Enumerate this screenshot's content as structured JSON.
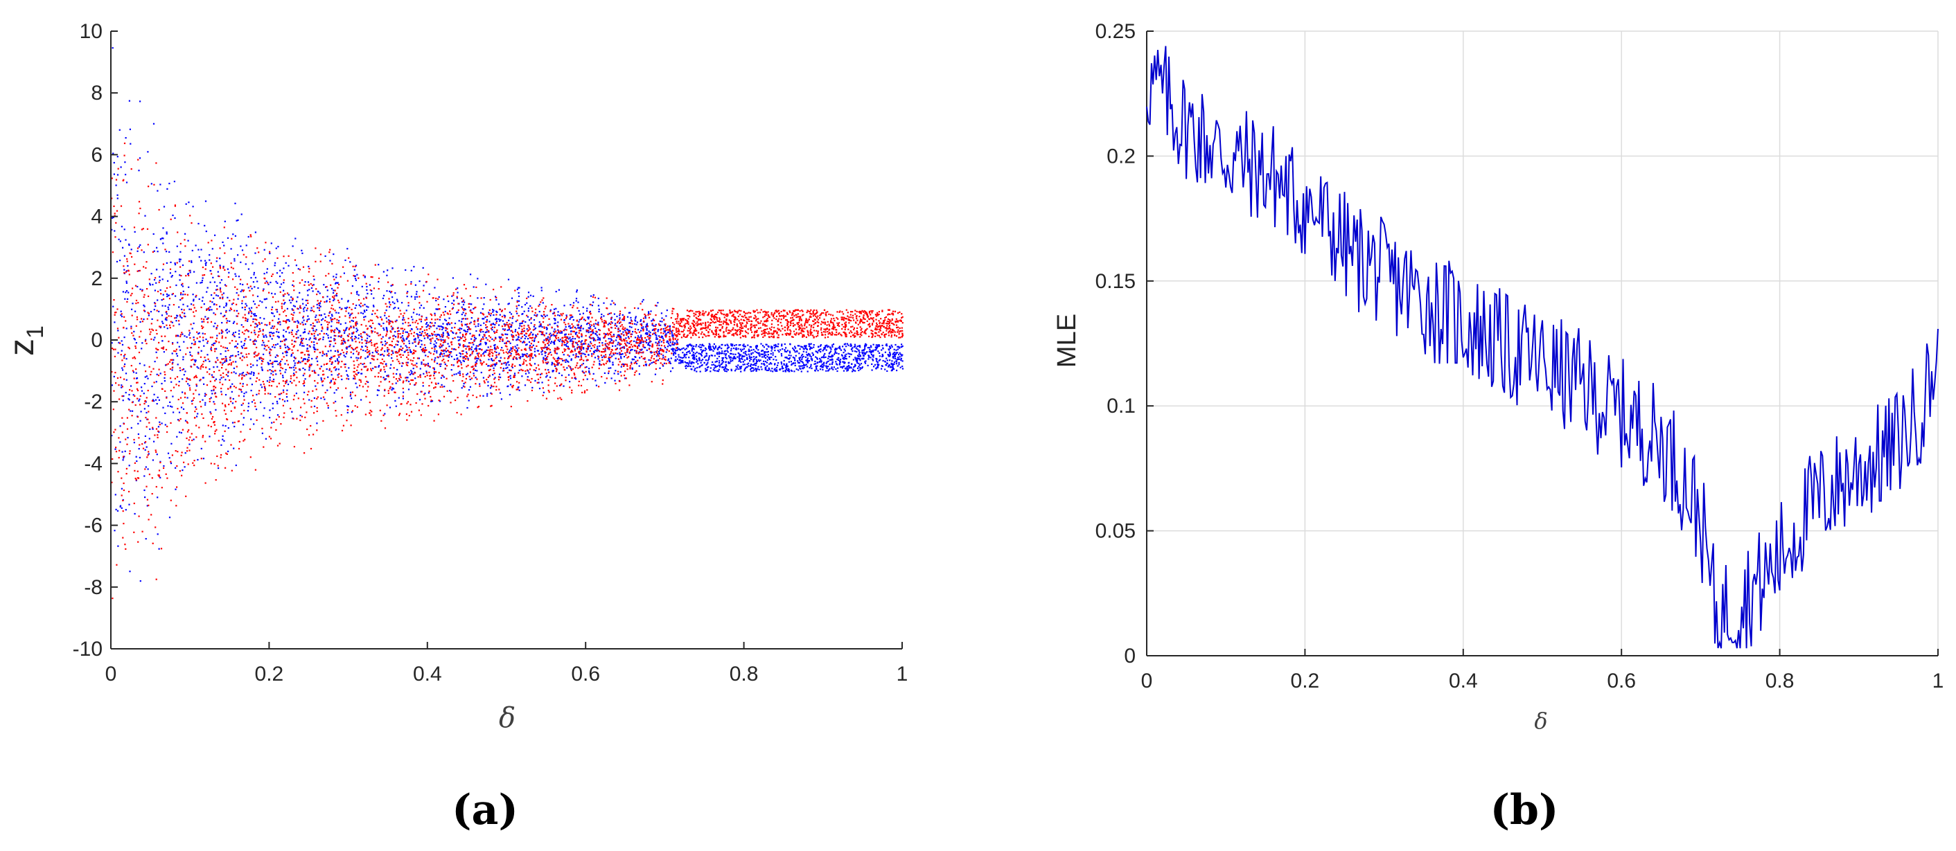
{
  "chart_data": [
    {
      "type": "scatter",
      "panel_label": "(a)",
      "xlabel": "δ",
      "ylabel": "z1",
      "ylabel_main": "z",
      "ylabel_sub": "1",
      "xlim": [
        0,
        1
      ],
      "ylim": [
        -10,
        10
      ],
      "x_ticks": [
        "0",
        "0.2",
        "0.4",
        "0.6",
        "0.8",
        "1"
      ],
      "y_ticks": [
        "10",
        "8",
        "6",
        "4",
        "2",
        "0",
        "-2",
        "-4",
        "-6",
        "-8",
        "-10"
      ],
      "grid": false,
      "series": [
        {
          "color": "#0000ff",
          "description_of_distribution": "bifurcation cloud; spread shrinks as δ increases; above δ≈0.72 concentrated in band [-1, -0.1]",
          "envelope": [
            {
              "x": 0.0,
              "min": -10,
              "max": 10
            },
            {
              "x": 0.05,
              "min": -7.5,
              "max": 7.5
            },
            {
              "x": 0.1,
              "min": -5,
              "max": 5.5
            },
            {
              "x": 0.2,
              "min": -3.5,
              "max": 4
            },
            {
              "x": 0.3,
              "min": -2.8,
              "max": 3.2
            },
            {
              "x": 0.4,
              "min": -2.4,
              "max": 2.4
            },
            {
              "x": 0.5,
              "min": -2.0,
              "max": 2.0
            },
            {
              "x": 0.6,
              "min": -1.6,
              "max": 1.6
            },
            {
              "x": 0.7,
              "min": -1.3,
              "max": 1.3
            },
            {
              "x": 0.72,
              "min": -1.0,
              "max": -0.1
            },
            {
              "x": 1.0,
              "min": -1.0,
              "max": -0.1
            }
          ]
        },
        {
          "color": "#ff0000",
          "description_of_distribution": "bifurcation cloud; spread shrinks as δ increases; above δ≈0.72 concentrated in band [0, 1]",
          "envelope": [
            {
              "x": 0.0,
              "min": -10,
              "max": 10
            },
            {
              "x": 0.05,
              "min": -8,
              "max": 6
            },
            {
              "x": 0.1,
              "min": -6,
              "max": 4.5
            },
            {
              "x": 0.2,
              "min": -4,
              "max": 3.5
            },
            {
              "x": 0.3,
              "min": -3.3,
              "max": 2.8
            },
            {
              "x": 0.4,
              "min": -2.8,
              "max": 2.2
            },
            {
              "x": 0.5,
              "min": -2.2,
              "max": 1.8
            },
            {
              "x": 0.6,
              "min": -1.8,
              "max": 1.5
            },
            {
              "x": 0.7,
              "min": -1.4,
              "max": 1.2
            },
            {
              "x": 0.72,
              "min": 0.1,
              "max": 1.0
            },
            {
              "x": 1.0,
              "min": 0.1,
              "max": 1.0
            }
          ]
        }
      ]
    },
    {
      "type": "line",
      "panel_label": "(b)",
      "xlabel": "δ",
      "ylabel": "MLE",
      "xlim": [
        0,
        1
      ],
      "ylim": [
        0,
        0.25
      ],
      "x_ticks": [
        "0",
        "0.2",
        "0.4",
        "0.6",
        "0.8",
        "1"
      ],
      "y_ticks": [
        "0.25",
        "0.2",
        "0.15",
        "0.1",
        "0.05",
        "0"
      ],
      "grid": true,
      "series": [
        {
          "color": "#0000cd",
          "x": [
            0.0,
            0.02,
            0.04,
            0.06,
            0.08,
            0.1,
            0.12,
            0.14,
            0.16,
            0.18,
            0.2,
            0.22,
            0.24,
            0.26,
            0.28,
            0.3,
            0.32,
            0.34,
            0.36,
            0.38,
            0.4,
            0.42,
            0.44,
            0.46,
            0.48,
            0.5,
            0.52,
            0.54,
            0.56,
            0.58,
            0.6,
            0.62,
            0.64,
            0.66,
            0.68,
            0.7,
            0.72,
            0.74,
            0.76,
            0.78,
            0.8,
            0.82,
            0.84,
            0.86,
            0.88,
            0.9,
            0.92,
            0.94,
            0.96,
            0.98,
            1.0
          ],
          "y": [
            0.23,
            0.225,
            0.215,
            0.21,
            0.205,
            0.2,
            0.198,
            0.195,
            0.192,
            0.185,
            0.18,
            0.175,
            0.168,
            0.16,
            0.158,
            0.152,
            0.148,
            0.145,
            0.14,
            0.137,
            0.133,
            0.13,
            0.126,
            0.122,
            0.12,
            0.117,
            0.113,
            0.11,
            0.106,
            0.1,
            0.097,
            0.092,
            0.088,
            0.082,
            0.07,
            0.055,
            0.015,
            0.02,
            0.025,
            0.03,
            0.04,
            0.05,
            0.06,
            0.065,
            0.07,
            0.075,
            0.078,
            0.082,
            0.09,
            0.1,
            0.12
          ]
        }
      ]
    }
  ]
}
